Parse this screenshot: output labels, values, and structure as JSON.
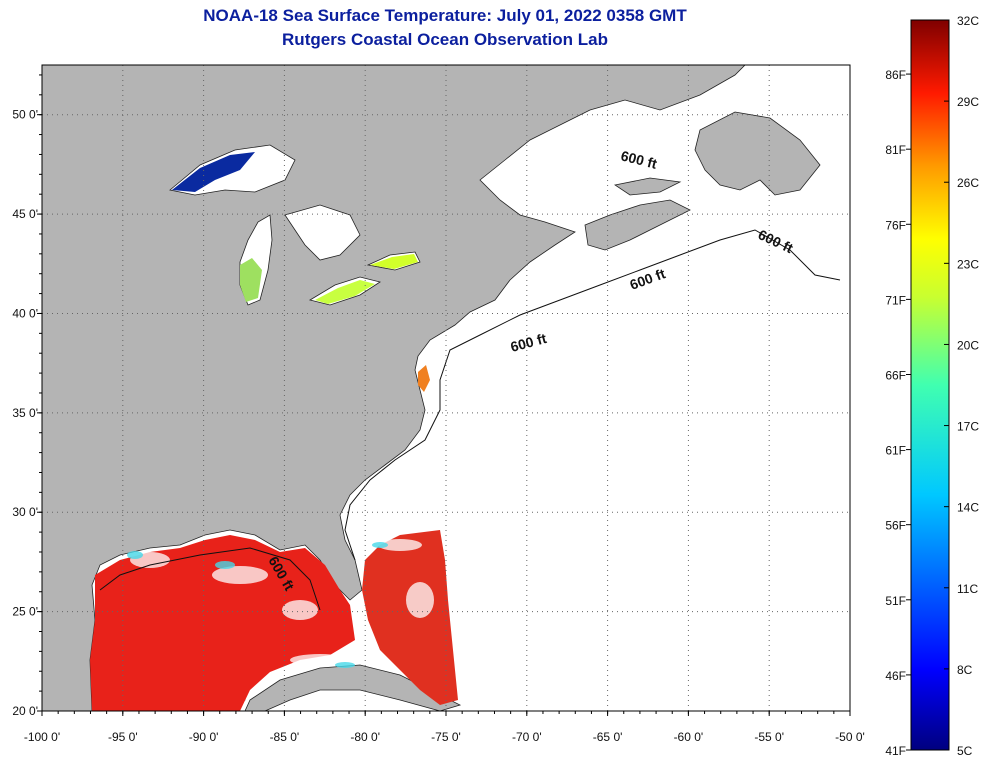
{
  "title": {
    "line1": "NOAA-18 Sea Surface Temperature:  July 01, 2022 0358 GMT",
    "line2": "Rutgers Coastal Ocean Observation Lab"
  },
  "map": {
    "lon_range": [
      -100,
      -50
    ],
    "lat_range": [
      20,
      52.5
    ],
    "lon_ticks": [
      "-100 0'",
      "-95 0'",
      "-90 0'",
      "-85 0'",
      "-80 0'",
      "-75 0'",
      "-70 0'",
      "-65 0'",
      "-60 0'",
      "-55 0'",
      "-50 0'"
    ],
    "lat_ticks": [
      {
        "lat": 50,
        "label": "50 0'"
      },
      {
        "lat": 45,
        "label": "45 0'"
      },
      {
        "lat": 40,
        "label": "40 0'"
      },
      {
        "lat": 35,
        "label": "35 0'"
      },
      {
        "lat": 30,
        "label": "30 0'"
      },
      {
        "lat": 25,
        "label": "25 0'"
      },
      {
        "lat": 20,
        "label": "20 0'"
      }
    ],
    "contour_label": "600 ft",
    "colors": {
      "land": "#b4b4b4",
      "ocean_nodata": "#ffffff",
      "warm_water": "#e8221a"
    }
  },
  "colorbar": {
    "celsius": [
      "32C",
      "29C",
      "26C",
      "23C",
      "20C",
      "17C",
      "14C",
      "11C",
      "8C",
      "5C"
    ],
    "fahrenheit": [
      "86F",
      "81F",
      "76F",
      "71F",
      "66F",
      "61F",
      "56F",
      "51F",
      "46F",
      "41F"
    ],
    "range_c": [
      5,
      32
    ]
  }
}
